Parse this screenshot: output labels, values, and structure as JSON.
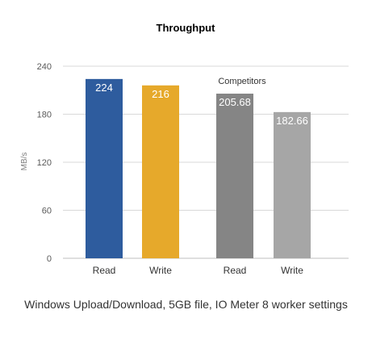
{
  "chart_data": {
    "type": "bar",
    "title": "Throughput",
    "ylabel": "MB/s",
    "xlabel": "",
    "ylim": [
      0,
      240
    ],
    "yticks": [
      0,
      60,
      120,
      180,
      240
    ],
    "grid": true,
    "categories": [
      "Read",
      "Write",
      "Read",
      "Write"
    ],
    "values": [
      224,
      216,
      205.68,
      182.66
    ],
    "value_labels": [
      "224",
      "216",
      "205.68",
      "182.66"
    ],
    "annotation": "Competitors",
    "colors": [
      "#2E5C9E",
      "#E6A92B",
      "#858585",
      "#A6A6A6"
    ]
  },
  "caption": "Windows Upload/Download, 5GB file, IO Meter 8 worker settings"
}
